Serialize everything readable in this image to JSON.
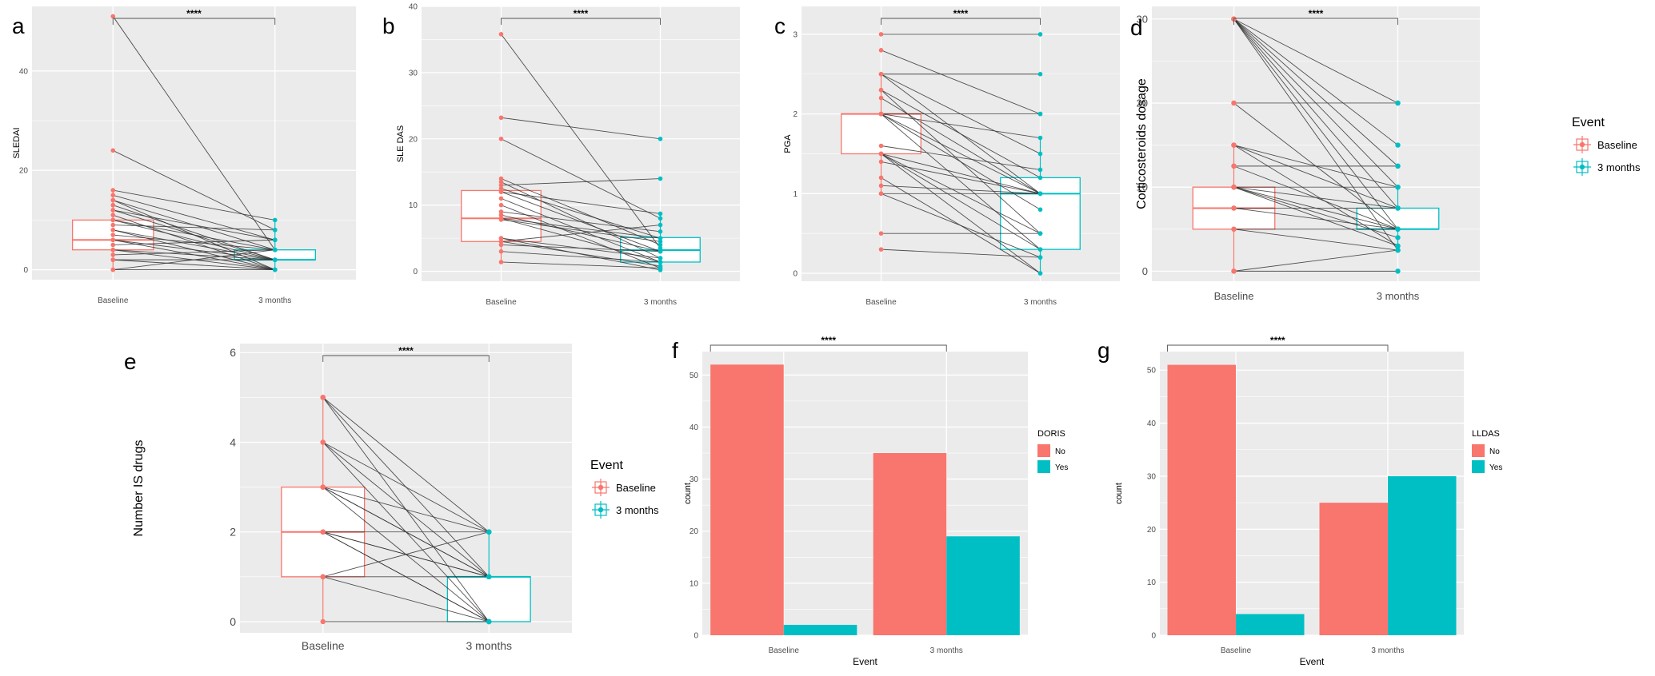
{
  "colors": {
    "baseline": "#F8766D",
    "three_months": "#00BFC4",
    "panel_bg": "#EBEBEB",
    "grid": "#FFFFFF",
    "line": "#333333"
  },
  "significance": "****",
  "chart_data": [
    {
      "id": "a",
      "panel_letter": "a",
      "type": "paired-boxplot",
      "categories": [
        "Baseline",
        "3 months"
      ],
      "ylabel": "SLEDAI",
      "xlabel": "",
      "ylim": [
        -2,
        53
      ],
      "yticks": [
        0,
        20,
        40
      ],
      "grid": true,
      "box": [
        {
          "group": "Baseline",
          "q1": 4,
          "median": 6,
          "q3": 10,
          "min": 0,
          "max": 16
        },
        {
          "group": "3 months",
          "q1": 2,
          "median": 2,
          "q3": 4,
          "min": 0,
          "max": 10
        }
      ],
      "pairs": [
        [
          51,
          4
        ],
        [
          24,
          8
        ],
        [
          16,
          10
        ],
        [
          15,
          6
        ],
        [
          14,
          4
        ],
        [
          13,
          2
        ],
        [
          12,
          6
        ],
        [
          11,
          0
        ],
        [
          10,
          4
        ],
        [
          10,
          2
        ],
        [
          9,
          8
        ],
        [
          8,
          2
        ],
        [
          8,
          0
        ],
        [
          7,
          4
        ],
        [
          6,
          2
        ],
        [
          6,
          0
        ],
        [
          5,
          6
        ],
        [
          4,
          2
        ],
        [
          4,
          0
        ],
        [
          3,
          4
        ],
        [
          2,
          2
        ],
        [
          2,
          0
        ],
        [
          0,
          0
        ],
        [
          0,
          4
        ],
        [
          12,
          2
        ],
        [
          14,
          0
        ]
      ]
    },
    {
      "id": "b",
      "panel_letter": "b",
      "type": "paired-boxplot",
      "categories": [
        "Baseline",
        "3 months"
      ],
      "ylabel": "SLE DAS",
      "xlabel": "",
      "ylim": [
        -1.5,
        40
      ],
      "yticks": [
        0,
        10,
        20,
        30,
        40
      ],
      "grid": true,
      "box": [
        {
          "group": "Baseline",
          "q1": 4.5,
          "median": 8,
          "q3": 12.2,
          "min": 1.4,
          "max": 14
        },
        {
          "group": "3 months",
          "q1": 1.4,
          "median": 3.2,
          "q3": 5.1,
          "min": 0.2,
          "max": 8.7
        }
      ],
      "pairs": [
        [
          35.8,
          3.5
        ],
        [
          23.2,
          20
        ],
        [
          20,
          8
        ],
        [
          14,
          4
        ],
        [
          13.5,
          2
        ],
        [
          13,
          14
        ],
        [
          12.5,
          5
        ],
        [
          12,
          3
        ],
        [
          11,
          1.4
        ],
        [
          10,
          0.5
        ],
        [
          9,
          6
        ],
        [
          8.5,
          3
        ],
        [
          8,
          1.4
        ],
        [
          7.8,
          4.5
        ],
        [
          5,
          0.2
        ],
        [
          5,
          2
        ],
        [
          4.5,
          7
        ],
        [
          4,
          3
        ],
        [
          3,
          1.4
        ],
        [
          1.4,
          0.5
        ],
        [
          8,
          5
        ],
        [
          12,
          8.7
        ],
        [
          4.5,
          0.8
        ]
      ]
    },
    {
      "id": "c",
      "panel_letter": "c",
      "type": "paired-boxplot",
      "categories": [
        "Baseline",
        "3 months"
      ],
      "ylabel": "PGA",
      "xlabel": "",
      "ylim": [
        -0.1,
        3.35
      ],
      "yticks": [
        0,
        1,
        2,
        3
      ],
      "grid": true,
      "box": [
        {
          "group": "Baseline",
          "q1": 1.5,
          "median": 2,
          "q3": 2,
          "min": 1,
          "max": 2.5
        },
        {
          "group": "3 months",
          "q1": 0.3,
          "median": 1,
          "q3": 1.2,
          "min": 0,
          "max": 1.7
        }
      ],
      "pairs": [
        [
          3,
          3
        ],
        [
          2.8,
          2
        ],
        [
          2.5,
          2.5
        ],
        [
          2.5,
          1
        ],
        [
          2.5,
          1.5
        ],
        [
          2.3,
          1.2
        ],
        [
          2.3,
          0.5
        ],
        [
          2,
          2
        ],
        [
          2,
          1.7
        ],
        [
          2,
          1
        ],
        [
          2,
          0.3
        ],
        [
          2,
          0.8
        ],
        [
          1.6,
          1.3
        ],
        [
          1.5,
          1
        ],
        [
          1.5,
          0.5
        ],
        [
          1.5,
          0.3
        ],
        [
          1.4,
          1
        ],
        [
          1.2,
          0
        ],
        [
          1.1,
          1
        ],
        [
          1,
          1
        ],
        [
          1,
          0.2
        ],
        [
          0.5,
          0.5
        ],
        [
          0.3,
          0.2
        ],
        [
          2.2,
          1
        ],
        [
          1.5,
          0
        ]
      ]
    },
    {
      "id": "d",
      "panel_letter": "d",
      "type": "paired-boxplot",
      "categories": [
        "Baseline",
        "3 months"
      ],
      "ylabel": "Corticosteroids dosage",
      "xlabel": "",
      "ylim": [
        -1.2,
        31.5
      ],
      "yticks": [
        0,
        10,
        20,
        30
      ],
      "grid": true,
      "box": [
        {
          "group": "Baseline",
          "q1": 5,
          "median": 7.5,
          "q3": 10,
          "min": 0,
          "max": 15
        },
        {
          "group": "3 months",
          "q1": 5,
          "median": 5,
          "q3": 7.5,
          "min": 2.5,
          "max": 10
        }
      ],
      "pairs": [
        [
          30,
          20
        ],
        [
          30,
          15
        ],
        [
          30,
          12.5
        ],
        [
          30,
          10
        ],
        [
          30,
          7.5
        ],
        [
          30,
          5
        ],
        [
          30,
          2.5
        ],
        [
          20,
          20
        ],
        [
          20,
          5
        ],
        [
          15,
          10
        ],
        [
          15,
          7.5
        ],
        [
          15,
          3
        ],
        [
          12.5,
          12.5
        ],
        [
          12.5,
          5
        ],
        [
          10,
          10
        ],
        [
          10,
          7.5
        ],
        [
          10,
          5
        ],
        [
          10,
          4
        ],
        [
          10,
          3
        ],
        [
          7.5,
          7.5
        ],
        [
          7.5,
          5
        ],
        [
          5,
          5
        ],
        [
          5,
          2.5
        ],
        [
          0,
          0
        ],
        [
          0,
          2.5
        ]
      ]
    },
    {
      "id": "e",
      "panel_letter": "e",
      "type": "paired-boxplot",
      "categories": [
        "Baseline",
        "3 months"
      ],
      "ylabel": "Number IS drugs",
      "xlabel": "",
      "ylim": [
        -0.25,
        6.2
      ],
      "yticks": [
        0,
        2,
        4,
        6
      ],
      "grid": true,
      "box": [
        {
          "group": "Baseline",
          "q1": 1,
          "median": 2,
          "q3": 3,
          "min": 0,
          "max": 5
        },
        {
          "group": "3 months",
          "q1": 0,
          "median": 1,
          "q3": 1,
          "min": 0,
          "max": 2
        }
      ],
      "pairs": [
        [
          5,
          2
        ],
        [
          5,
          1
        ],
        [
          5,
          0
        ],
        [
          4,
          1
        ],
        [
          4,
          0
        ],
        [
          4,
          2
        ],
        [
          3,
          2
        ],
        [
          3,
          1
        ],
        [
          3,
          0
        ],
        [
          2,
          2
        ],
        [
          2,
          1
        ],
        [
          2,
          0
        ],
        [
          2,
          1
        ],
        [
          1,
          1
        ],
        [
          1,
          0
        ],
        [
          1,
          2
        ],
        [
          0,
          0
        ],
        [
          3,
          1
        ],
        [
          2,
          0
        ]
      ]
    },
    {
      "id": "f",
      "panel_letter": "f",
      "type": "bar",
      "categories": [
        "Baseline",
        "3 months"
      ],
      "xlabel": "Event",
      "ylabel": "count",
      "ylim": [
        0,
        54.5
      ],
      "yticks": [
        0,
        10,
        20,
        30,
        40,
        50
      ],
      "grid": true,
      "legend": {
        "title": "DORIS",
        "placement": "right"
      },
      "series": [
        {
          "name": "No",
          "values": [
            52,
            35
          ]
        },
        {
          "name": "Yes",
          "values": [
            2,
            19
          ]
        }
      ]
    },
    {
      "id": "g",
      "panel_letter": "g",
      "type": "bar",
      "categories": [
        "Baseline",
        "3 months"
      ],
      "xlabel": "Event",
      "ylabel": "count",
      "ylim": [
        0,
        53.5
      ],
      "yticks": [
        0,
        10,
        20,
        30,
        40,
        50
      ],
      "grid": true,
      "legend": {
        "title": "LLDAS",
        "placement": "right"
      },
      "series": [
        {
          "name": "No",
          "values": [
            51,
            25
          ]
        },
        {
          "name": "Yes",
          "values": [
            4,
            30
          ]
        }
      ]
    }
  ],
  "event_legends": [
    {
      "id": "legend-d",
      "title": "Event",
      "items": [
        "Baseline",
        "3 months"
      ]
    },
    {
      "id": "legend-e",
      "title": "Event",
      "items": [
        "Baseline",
        "3 months"
      ]
    }
  ]
}
